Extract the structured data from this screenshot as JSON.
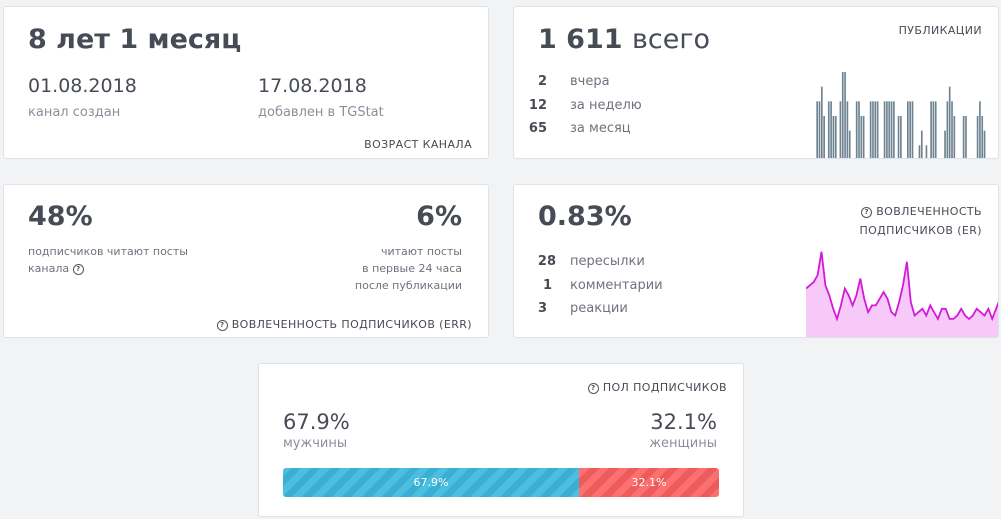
{
  "age": {
    "title": "8 лет 1 месяц",
    "created_date": "01.08.2018",
    "created_label": "канал создан",
    "added_date": "17.08.2018",
    "added_label": "добавлен в TGStat",
    "caption": "ВОЗРАСТ КАНАЛА"
  },
  "posts": {
    "total_value": "1 611",
    "total_word": "всего",
    "caption": "ПУБЛИКАЦИИ",
    "stats": [
      {
        "value": "2",
        "label": "вчера"
      },
      {
        "value": "12",
        "label": "за неделю"
      },
      {
        "value": "65",
        "label": "за месяц"
      }
    ],
    "bar_color": "#6e8391",
    "chart_data": {
      "type": "bar",
      "values": [
        0,
        4,
        4,
        5,
        3,
        0,
        4,
        4,
        3,
        3,
        0,
        4,
        6,
        6,
        4,
        2,
        0,
        0,
        4,
        4,
        3,
        3,
        0,
        0,
        4,
        4,
        4,
        4,
        0,
        0,
        4,
        4,
        4,
        4,
        4,
        0,
        3,
        3,
        0,
        0,
        4,
        4,
        4,
        0,
        0,
        1,
        2,
        0,
        1,
        0,
        4,
        4,
        4,
        0,
        0,
        0,
        2,
        4,
        5,
        4,
        3,
        0,
        0,
        0,
        3,
        3,
        0,
        0,
        0,
        0,
        3,
        4,
        3,
        2,
        0,
        0,
        0,
        0,
        0,
        0
      ]
    }
  },
  "err": {
    "percent": "48%",
    "percent_label_line1": "подписчиков читают посты",
    "percent_label_line2": "канала",
    "percent24": "6%",
    "percent24_label_line1": "читают посты",
    "percent24_label_line2": "в первые 24 часа",
    "percent24_label_line3": "после публикации",
    "caption": "ВОВЛЕЧЕННОСТЬ ПОДПИСЧИКОВ (ERR)"
  },
  "er": {
    "value": "0.83%",
    "caption_line1": "ВОВЛЕЧЕННОСТЬ",
    "caption_line2": "ПОДПИСЧИКОВ (ER)",
    "stats": [
      {
        "value": "28",
        "label": "пересылки"
      },
      {
        "value": "1",
        "label": "комментарии"
      },
      {
        "value": "3",
        "label": "реакции"
      }
    ],
    "line_color": "#d21ad8",
    "fill_color": "#f7c9f8",
    "chart_data": {
      "type": "area",
      "values": [
        1.5,
        1.6,
        1.7,
        1.9,
        2.6,
        1.6,
        1.3,
        0.9,
        0.6,
        1.0,
        1.5,
        1.3,
        1.0,
        1.3,
        1.8,
        1.2,
        0.8,
        1.0,
        1.0,
        1.2,
        1.4,
        1.2,
        0.8,
        0.7,
        1.1,
        1.6,
        2.3,
        1.1,
        0.7,
        0.8,
        0.9,
        0.7,
        1.0,
        0.8,
        0.6,
        0.9,
        0.9,
        0.6,
        0.6,
        0.7,
        0.9,
        0.7,
        0.6,
        0.7,
        0.9,
        0.8,
        0.7,
        0.9,
        0.6,
        0.9,
        1.2
      ]
    }
  },
  "gender": {
    "caption": "ПОЛ ПОДПИСЧИКОВ",
    "male_pct": "67.9%",
    "male_label": "мужчины",
    "female_pct": "32.1%",
    "female_label": "женщины",
    "male_share": 67.9,
    "male_color": "#42b7da",
    "female_color": "#f56565"
  }
}
